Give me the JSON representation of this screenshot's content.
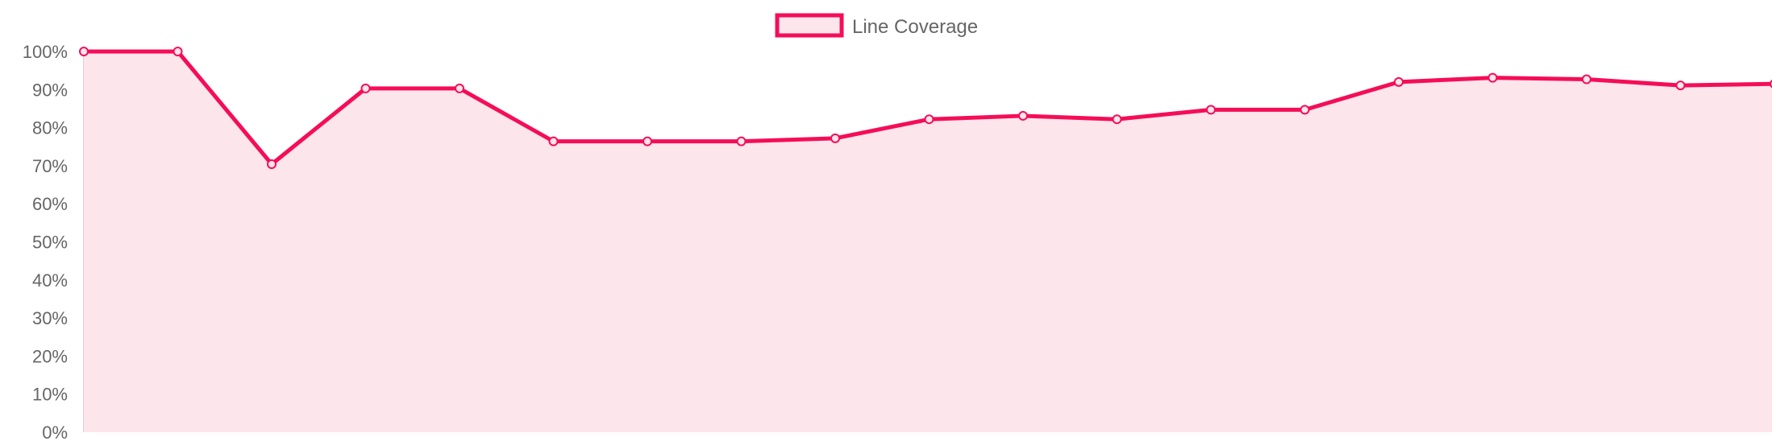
{
  "chart_data": {
    "type": "area",
    "legend": {
      "label": "Line Coverage",
      "placement": "top-center"
    },
    "y_axis": {
      "min": 0,
      "max": 100,
      "step": 10,
      "tick_labels": [
        "0%",
        "10%",
        "20%",
        "30%",
        "40%",
        "50%",
        "60%",
        "70%",
        "80%",
        "90%",
        "100%"
      ]
    },
    "x_axis": {
      "tick_labels": []
    },
    "grid": false,
    "series": [
      {
        "name": "Line Coverage",
        "values": [
          100,
          100,
          70.4,
          90.3,
          90.3,
          76.4,
          76.4,
          76.4,
          77.2,
          82.2,
          83.1,
          82.2,
          84.7,
          84.7,
          92.0,
          93.1,
          92.7,
          91.1,
          91.5
        ]
      }
    ],
    "colors": {
      "line": "#f50d57",
      "fill": "#fde5ec",
      "axis": "#e8b6c8",
      "tick_text": "#666666",
      "legend_text": "#666666"
    }
  }
}
